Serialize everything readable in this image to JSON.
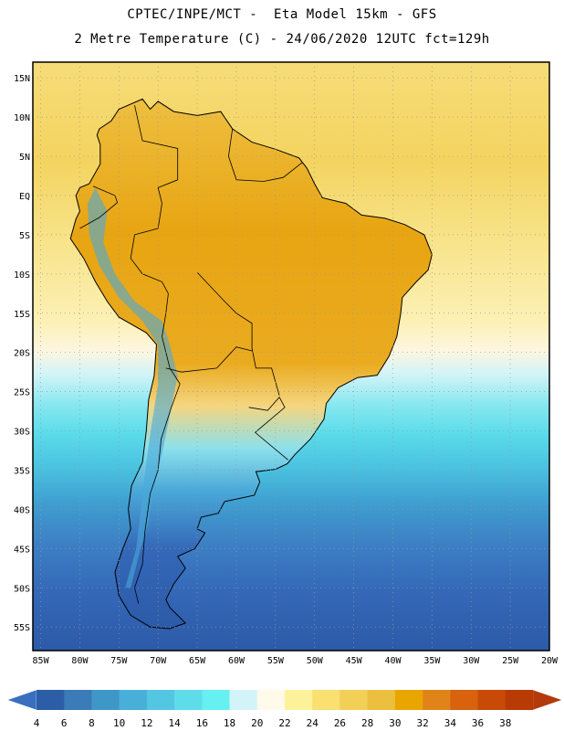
{
  "header": {
    "line1": "CPTEC/INPE/MCT -  Eta Model 15km - GFS",
    "line2": "2 Metre Temperature (C) - 24/06/2020 12UTC fct=129h"
  },
  "map": {
    "region": "South America",
    "lat_labels": [
      "15N",
      "10N",
      "5N",
      "EQ",
      "5S",
      "10S",
      "15S",
      "20S",
      "25S",
      "30S",
      "35S",
      "40S",
      "45S",
      "50S",
      "55S"
    ],
    "lat_values": [
      15,
      10,
      5,
      0,
      -5,
      -10,
      -15,
      -20,
      -25,
      -30,
      -35,
      -40,
      -45,
      -50,
      -55
    ],
    "lon_labels": [
      "85W",
      "80W",
      "75W",
      "70W",
      "65W",
      "60W",
      "55W",
      "50W",
      "45W",
      "40W",
      "35W",
      "30W",
      "25W",
      "20W"
    ],
    "lon_values": [
      -85,
      -80,
      -75,
      -70,
      -65,
      -60,
      -55,
      -50,
      -45,
      -40,
      -35,
      -30,
      -25,
      -20
    ],
    "gridlines": true,
    "gridline_style": "dotted",
    "extent": {
      "lon_min": -86,
      "lon_max": -20,
      "lat_min": -58,
      "lat_max": 17
    }
  },
  "colorbar": {
    "labels": [
      "4",
      "6",
      "8",
      "10",
      "12",
      "14",
      "16",
      "18",
      "20",
      "22",
      "24",
      "26",
      "28",
      "30",
      "32",
      "34",
      "36",
      "38"
    ],
    "colors": [
      "#2c5ea8",
      "#3a7bb8",
      "#3f97c8",
      "#48b0d8",
      "#53c6e2",
      "#5edcea",
      "#66f0f2",
      "#d2f4f8",
      "#fffaea",
      "#fdf29a",
      "#f9e070",
      "#f2cf56",
      "#ecbf3e",
      "#e9a500",
      "#e0841a",
      "#d8620e",
      "#c84a06",
      "#b83a04"
    ],
    "under_color": "#3a6fc0",
    "over_color": "#b33a0a"
  }
}
